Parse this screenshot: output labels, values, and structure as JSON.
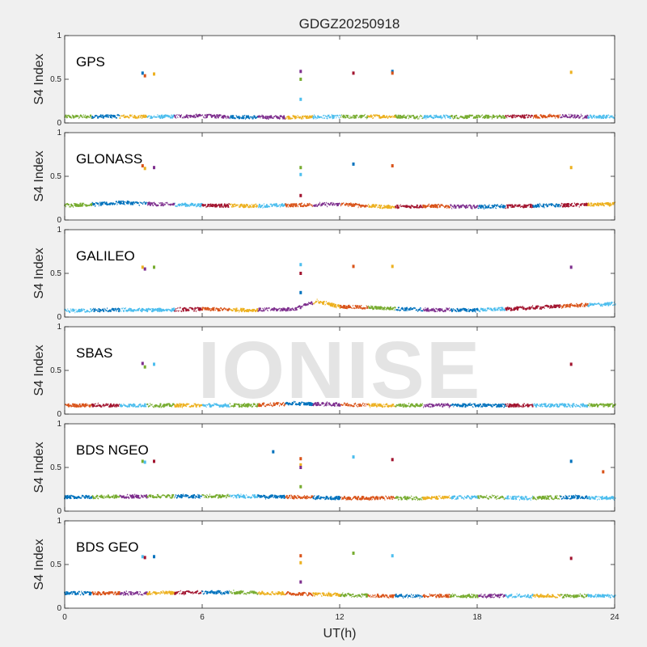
{
  "watermark": "IONISE",
  "chart_data": {
    "type": "scatter",
    "title": "GDGZ20250918",
    "xlabel": "UT(h)",
    "ylabel": "S4 Index",
    "xlim": [
      0,
      24
    ],
    "ylim": [
      0,
      1
    ],
    "x_ticks": [
      "0",
      "6",
      "12",
      "18",
      "24"
    ],
    "y_ticks": [
      "0",
      "0.5",
      "1"
    ],
    "grid": false,
    "palette": [
      "#0072BD",
      "#D95319",
      "#EDB120",
      "#7E2F8E",
      "#77AC30",
      "#4DBEEE",
      "#A2142F"
    ],
    "panels": [
      {
        "name": "GPS",
        "baseline": [
          {
            "x": [
              0,
              2,
              4,
              6,
              8,
              10,
              12,
              14,
              16,
              18,
              20,
              22,
              24
            ],
            "y": [
              0.07,
              0.075,
              0.07,
              0.08,
              0.065,
              0.065,
              0.07,
              0.075,
              0.07,
              0.07,
              0.075,
              0.075,
              0.07
            ]
          }
        ],
        "spikes": [
          {
            "x": 3.4,
            "y": 0.57
          },
          {
            "x": 3.5,
            "y": 0.54
          },
          {
            "x": 3.9,
            "y": 0.56
          },
          {
            "x": 10.3,
            "y": 0.59
          },
          {
            "x": 10.3,
            "y": 0.5
          },
          {
            "x": 10.3,
            "y": 0.27
          },
          {
            "x": 12.6,
            "y": 0.57
          },
          {
            "x": 14.3,
            "y": 0.59
          },
          {
            "x": 14.3,
            "y": 0.57
          },
          {
            "x": 22.1,
            "y": 0.58
          }
        ]
      },
      {
        "name": "GLONASS",
        "baseline": [
          {
            "x": [
              0,
              1.5,
              2.5,
              4,
              6,
              8,
              10,
              12,
              14,
              16,
              18,
              20,
              22,
              24
            ],
            "y": [
              0.17,
              0.18,
              0.2,
              0.18,
              0.17,
              0.16,
              0.17,
              0.18,
              0.15,
              0.16,
              0.15,
              0.16,
              0.17,
              0.18
            ]
          }
        ],
        "spikes": [
          {
            "x": 3.4,
            "y": 0.62
          },
          {
            "x": 3.5,
            "y": 0.59
          },
          {
            "x": 3.9,
            "y": 0.6
          },
          {
            "x": 10.3,
            "y": 0.6
          },
          {
            "x": 10.3,
            "y": 0.52
          },
          {
            "x": 10.3,
            "y": 0.28
          },
          {
            "x": 12.6,
            "y": 0.64
          },
          {
            "x": 14.3,
            "y": 0.62
          },
          {
            "x": 22.1,
            "y": 0.6
          }
        ]
      },
      {
        "name": "GALILEO",
        "baseline": [
          {
            "x": [
              0,
              2,
              4,
              6,
              8,
              10,
              11,
              12,
              14,
              16,
              18,
              20,
              22,
              24
            ],
            "y": [
              0.07,
              0.08,
              0.08,
              0.09,
              0.08,
              0.09,
              0.18,
              0.12,
              0.1,
              0.08,
              0.08,
              0.1,
              0.13,
              0.15
            ]
          }
        ],
        "spikes": [
          {
            "x": 3.4,
            "y": 0.57
          },
          {
            "x": 3.5,
            "y": 0.55
          },
          {
            "x": 3.9,
            "y": 0.57
          },
          {
            "x": 10.3,
            "y": 0.6
          },
          {
            "x": 10.3,
            "y": 0.5
          },
          {
            "x": 10.3,
            "y": 0.28
          },
          {
            "x": 12.6,
            "y": 0.58
          },
          {
            "x": 14.3,
            "y": 0.58
          },
          {
            "x": 22.1,
            "y": 0.57
          }
        ]
      },
      {
        "name": "SBAS",
        "baseline": [
          {
            "x": [
              0,
              4,
              8,
              10,
              12,
              14,
              18,
              22,
              24
            ],
            "y": [
              0.1,
              0.1,
              0.1,
              0.12,
              0.11,
              0.1,
              0.1,
              0.1,
              0.1
            ]
          }
        ],
        "spikes": [
          {
            "x": 3.4,
            "y": 0.58
          },
          {
            "x": 3.5,
            "y": 0.54
          },
          {
            "x": 3.9,
            "y": 0.57
          },
          {
            "x": 22.1,
            "y": 0.57
          }
        ]
      },
      {
        "name": "BDS NGEO",
        "baseline": [
          {
            "x": [
              0,
              4,
              8,
              10,
              12,
              14,
              16,
              18,
              20,
              22,
              24
            ],
            "y": [
              0.16,
              0.17,
              0.17,
              0.16,
              0.15,
              0.15,
              0.15,
              0.16,
              0.15,
              0.16,
              0.15
            ]
          }
        ],
        "spikes": [
          {
            "x": 3.4,
            "y": 0.57
          },
          {
            "x": 3.5,
            "y": 0.56
          },
          {
            "x": 3.9,
            "y": 0.57
          },
          {
            "x": 9.1,
            "y": 0.68
          },
          {
            "x": 10.3,
            "y": 0.6
          },
          {
            "x": 10.3,
            "y": 0.53
          },
          {
            "x": 10.3,
            "y": 0.5
          },
          {
            "x": 10.3,
            "y": 0.28
          },
          {
            "x": 12.6,
            "y": 0.62
          },
          {
            "x": 14.3,
            "y": 0.59
          },
          {
            "x": 22.1,
            "y": 0.57
          },
          {
            "x": 23.5,
            "y": 0.45
          }
        ]
      },
      {
        "name": "BDS GEO",
        "baseline": [
          {
            "x": [
              0,
              3,
              6,
              8,
              11,
              14,
              18,
              22,
              24
            ],
            "y": [
              0.17,
              0.17,
              0.18,
              0.18,
              0.16,
              0.14,
              0.14,
              0.14,
              0.14
            ]
          }
        ],
        "spikes": [
          {
            "x": 3.4,
            "y": 0.59
          },
          {
            "x": 3.5,
            "y": 0.58
          },
          {
            "x": 3.9,
            "y": 0.59
          },
          {
            "x": 10.3,
            "y": 0.6
          },
          {
            "x": 10.3,
            "y": 0.52
          },
          {
            "x": 10.3,
            "y": 0.3
          },
          {
            "x": 12.6,
            "y": 0.63
          },
          {
            "x": 14.3,
            "y": 0.6
          },
          {
            "x": 22.1,
            "y": 0.57
          }
        ]
      }
    ]
  }
}
